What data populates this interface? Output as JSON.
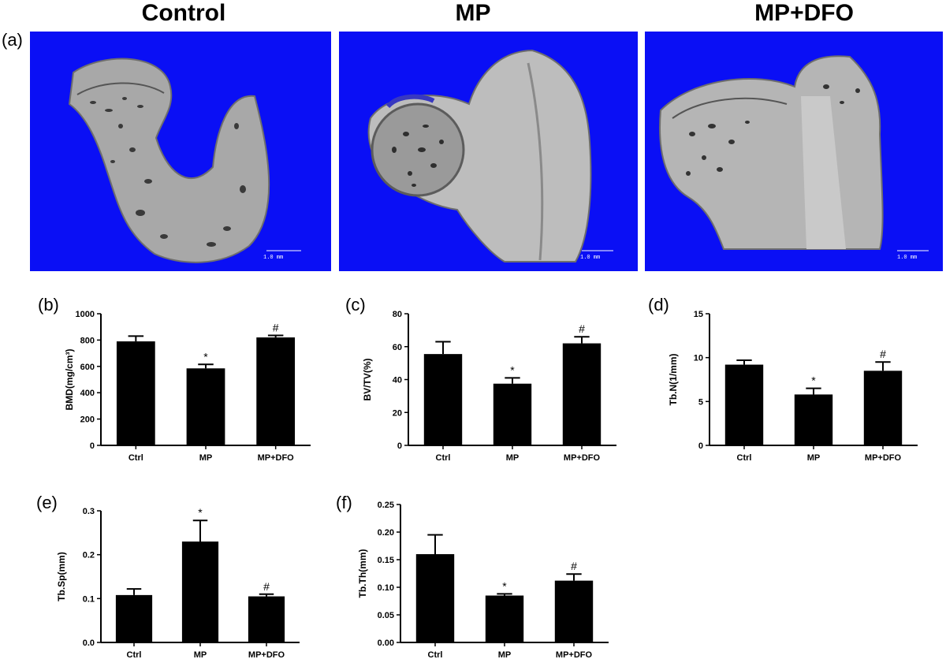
{
  "figure": {
    "group_titles": [
      "Control",
      "MP",
      "MP+DFO"
    ],
    "panel_a_label": "(a)",
    "scale_bar_label": "1.0 mm",
    "colors": {
      "ct_background": "#0a0ff5",
      "bone": "#a8a8a8",
      "bar": "#000000"
    }
  },
  "chart_data": [
    {
      "id": "b",
      "panel_label": "(b)",
      "type": "bar",
      "categories": [
        "Ctrl",
        "MP",
        "MP+DFO"
      ],
      "values": [
        790,
        585,
        820
      ],
      "errors": [
        40,
        30,
        15
      ],
      "markers": [
        "",
        "*",
        "#"
      ],
      "ylabel": "BMD(mg/cm³)",
      "ylim": [
        0,
        1000
      ],
      "yticks": [
        0,
        200,
        400,
        600,
        800,
        1000
      ],
      "ytick_labels": [
        "0",
        "200",
        "400",
        "600",
        "800",
        "1000"
      ]
    },
    {
      "id": "c",
      "panel_label": "(c)",
      "type": "bar",
      "categories": [
        "Ctrl",
        "MP",
        "MP+DFO"
      ],
      "values": [
        55.5,
        37.5,
        62
      ],
      "errors": [
        7.5,
        3.5,
        4
      ],
      "markers": [
        "",
        "*",
        "#"
      ],
      "ylabel": "BV/TV(%)",
      "ylim": [
        0,
        80
      ],
      "yticks": [
        0,
        20,
        40,
        60,
        80
      ],
      "ytick_labels": [
        "0",
        "20",
        "40",
        "60",
        "80"
      ]
    },
    {
      "id": "d",
      "panel_label": "(d)",
      "type": "bar",
      "categories": [
        "Ctrl",
        "MP",
        "MP+DFO"
      ],
      "values": [
        9.2,
        5.8,
        8.5
      ],
      "errors": [
        0.5,
        0.7,
        1.0
      ],
      "markers": [
        "",
        "*",
        "#"
      ],
      "ylabel": "Tb.N(1/mm)",
      "ylim": [
        0,
        15
      ],
      "yticks": [
        0,
        5,
        10,
        15
      ],
      "ytick_labels": [
        "0",
        "5",
        "10",
        "15"
      ]
    },
    {
      "id": "e",
      "panel_label": "(e)",
      "type": "bar",
      "categories": [
        "Ctrl",
        "MP",
        "MP+DFO"
      ],
      "values": [
        0.108,
        0.23,
        0.105
      ],
      "errors": [
        0.014,
        0.048,
        0.005
      ],
      "markers": [
        "",
        "*",
        "#"
      ],
      "ylabel": "Tb.Sp(mm)",
      "ylim": [
        0,
        0.3
      ],
      "yticks": [
        0,
        0.1,
        0.2,
        0.3
      ],
      "ytick_labels": [
        "0.0",
        "0.1",
        "0.2",
        "0.3"
      ]
    },
    {
      "id": "f",
      "panel_label": "(f)",
      "type": "bar",
      "categories": [
        "Ctrl",
        "MP",
        "MP+DFO"
      ],
      "values": [
        0.16,
        0.085,
        0.112
      ],
      "errors": [
        0.035,
        0.003,
        0.012
      ],
      "markers": [
        "",
        "*",
        "#"
      ],
      "ylabel": "Tb.Th(mm)",
      "ylim": [
        0,
        0.25
      ],
      "yticks": [
        0,
        0.05,
        0.1,
        0.15,
        0.2,
        0.25
      ],
      "ytick_labels": [
        "0.00",
        "0.05",
        "0.10",
        "0.15",
        "0.20",
        "0.25"
      ]
    }
  ]
}
